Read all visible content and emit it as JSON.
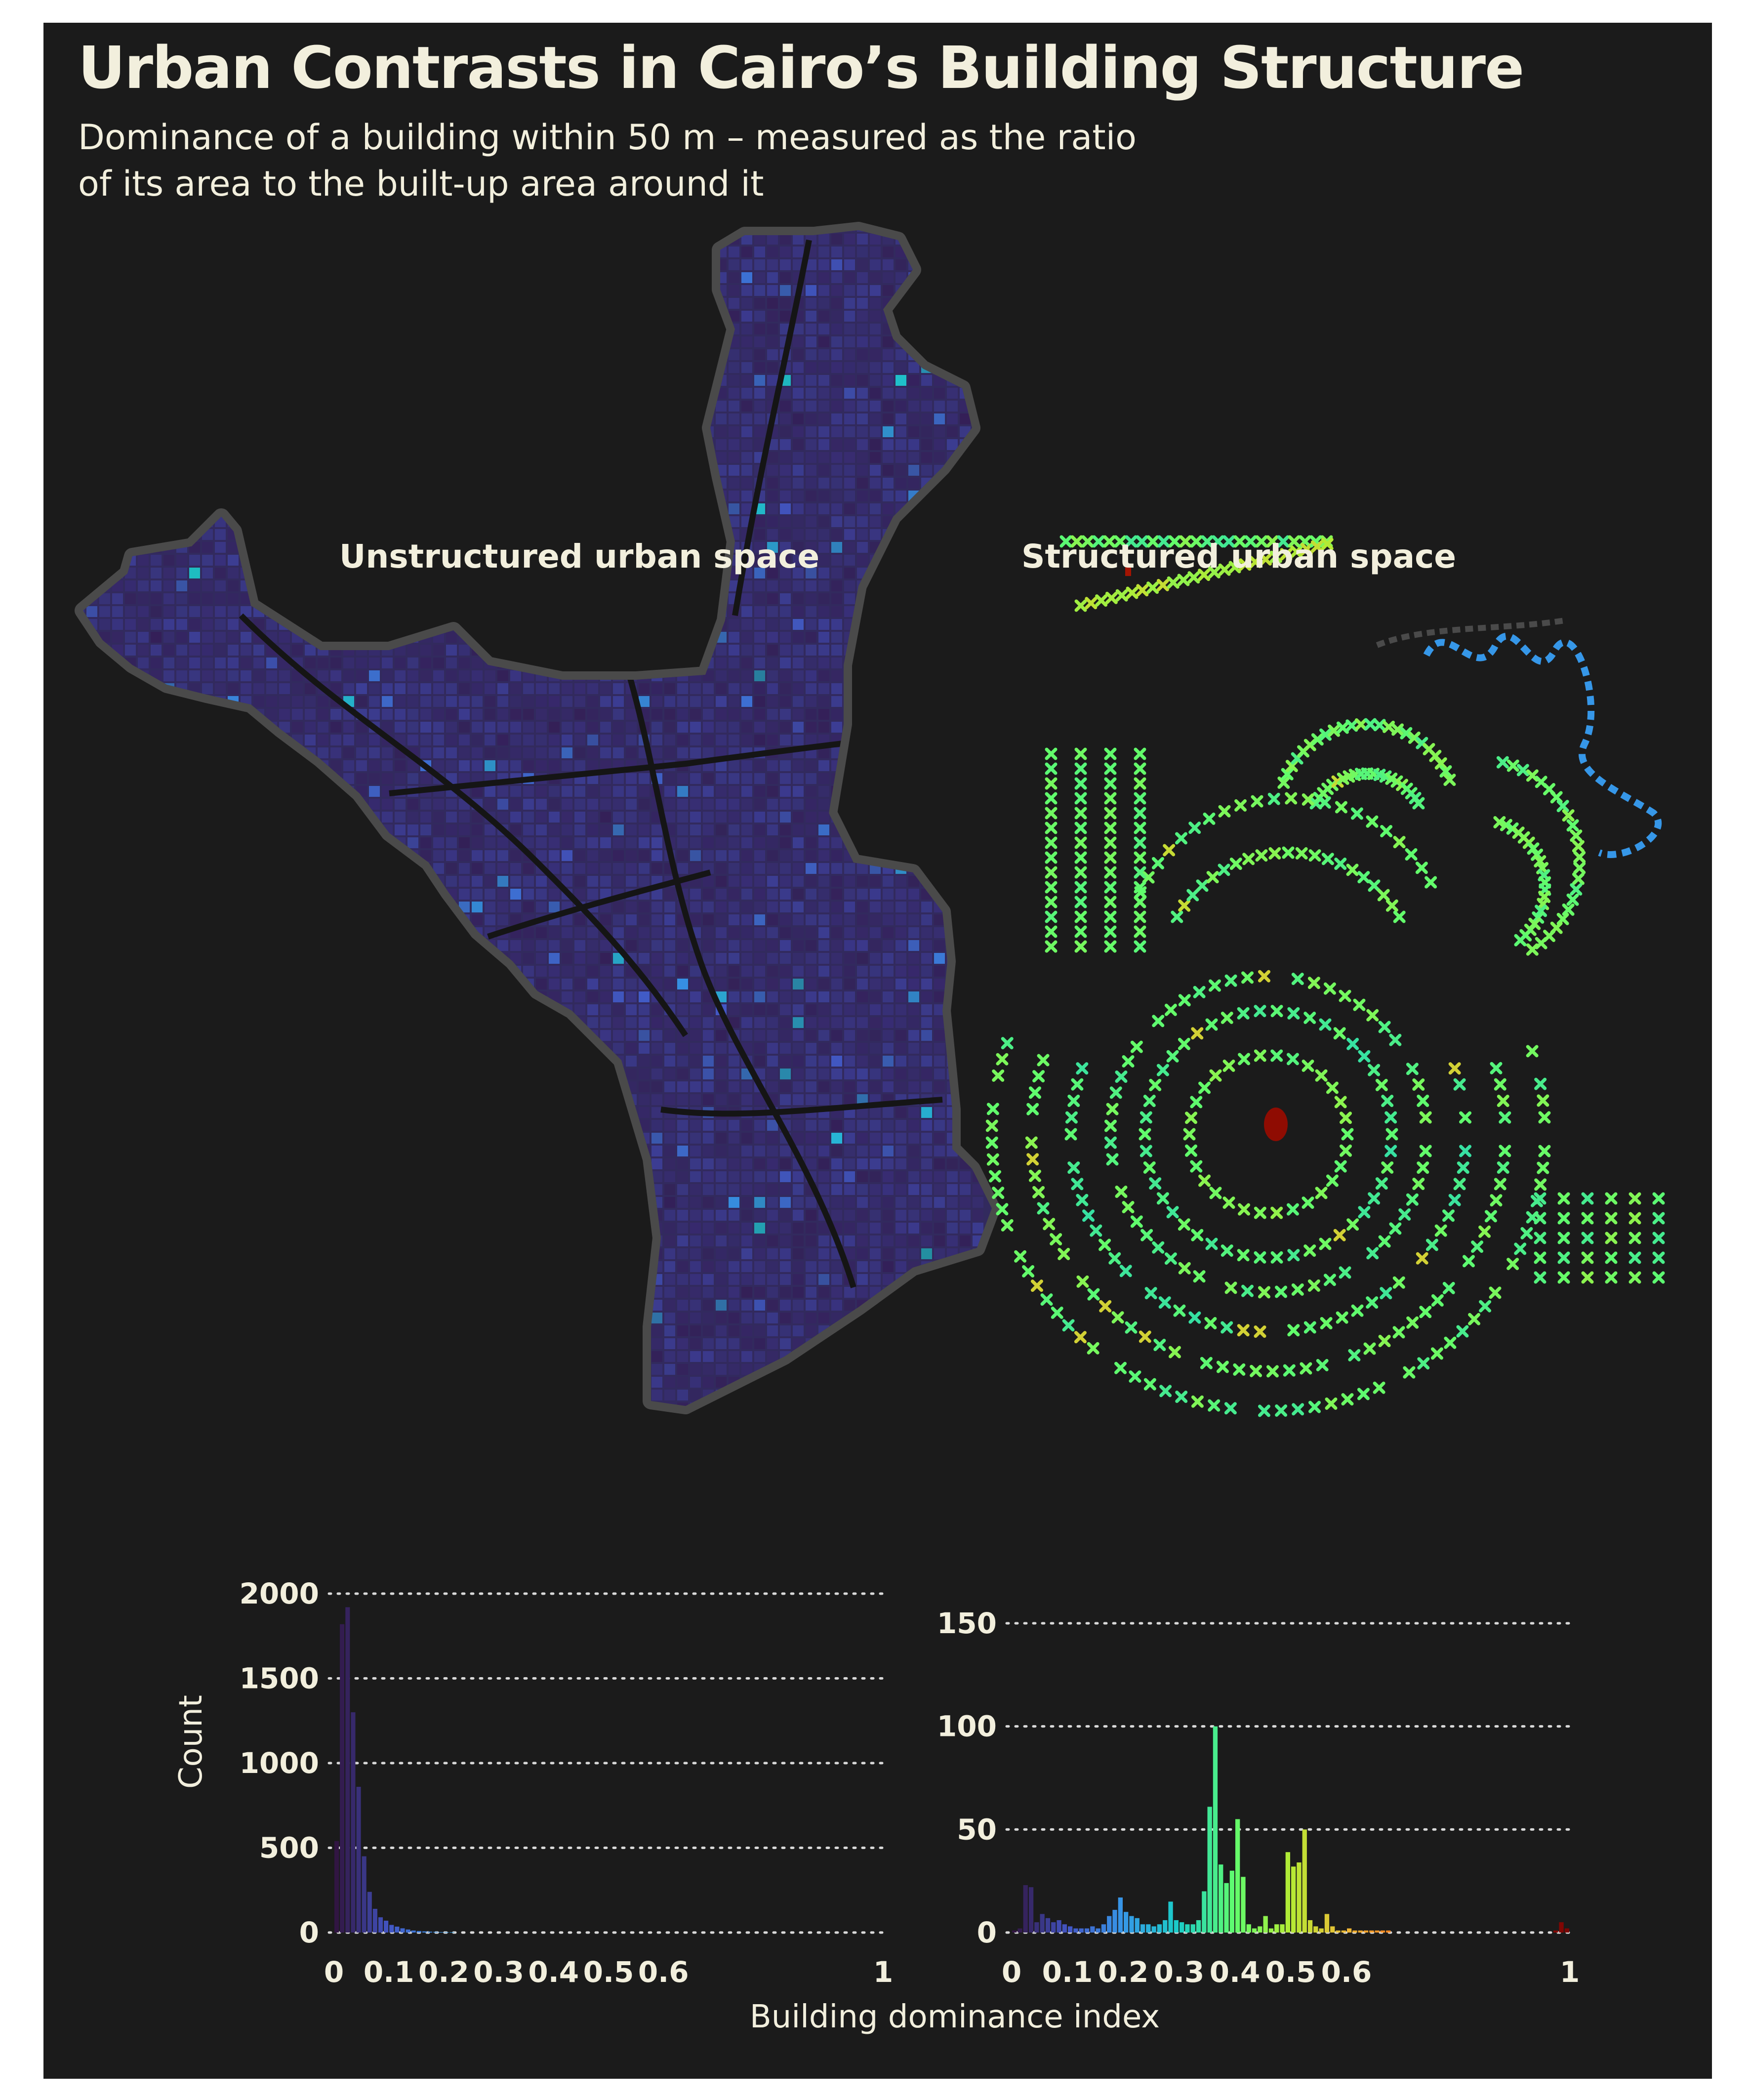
{
  "title": "Urban Contrasts in Cairo’s Building Structure",
  "subtitle": "Dominance of a building within 50 m – measured as the ratio of its area to the built-up area around it",
  "colors": {
    "background": "#1b1b1b",
    "text": "#f2efdd",
    "no_data_building": "#4a4a4a",
    "unstructured_base": "#322a5e"
  },
  "map": {
    "left_district": "unstructured urban space (organic street grid)",
    "right_district": "structured urban space (planned concentric blocks)"
  },
  "chart_data": [
    {
      "type": "bar",
      "title": "Unstructured urban space",
      "xlabel": "",
      "ylabel": "Count",
      "xlim": [
        0,
        1
      ],
      "ylim": [
        0,
        2000
      ],
      "yticks": [
        0,
        500,
        1000,
        1500,
        2000
      ],
      "yticklabels": [
        "0",
        "500",
        "1000",
        "1500",
        "2000"
      ],
      "xticks": [
        0,
        0.1,
        0.2,
        0.3,
        0.4,
        0.5,
        0.6,
        1
      ],
      "xticklabels": [
        "0",
        "0.1",
        "0.2",
        "0.3",
        "0.4",
        "0.5",
        "0.6",
        "1"
      ],
      "grid": "horizontal dotted",
      "bin_width": 0.01,
      "x": [
        0.005,
        0.015,
        0.025,
        0.035,
        0.045,
        0.055,
        0.065,
        0.075,
        0.085,
        0.095,
        0.105,
        0.115,
        0.125,
        0.135,
        0.145,
        0.155,
        0.165,
        0.175,
        0.185,
        0.195,
        0.205,
        0.215
      ],
      "values": [
        540,
        1820,
        1920,
        1300,
        860,
        450,
        240,
        140,
        90,
        70,
        45,
        35,
        25,
        18,
        12,
        9,
        7,
        5,
        4,
        3,
        2,
        2
      ]
    },
    {
      "type": "bar",
      "title": "Structured urban space",
      "xlabel": "Building dominance index",
      "ylabel": "",
      "xlim": [
        0,
        1
      ],
      "ylim": [
        0,
        150
      ],
      "yticks": [
        0,
        50,
        100,
        150
      ],
      "yticklabels": [
        "0",
        "50",
        "100",
        "150"
      ],
      "xticks": [
        0,
        0.1,
        0.2,
        0.3,
        0.4,
        0.5,
        0.6,
        1
      ],
      "xticklabels": [
        "0",
        "0.1",
        "0.2",
        "0.3",
        "0.4",
        "0.5",
        "0.6",
        "1"
      ],
      "grid": "horizontal dotted",
      "bin_width": 0.01,
      "x": [
        0.005,
        0.015,
        0.025,
        0.035,
        0.045,
        0.055,
        0.065,
        0.075,
        0.085,
        0.095,
        0.105,
        0.115,
        0.125,
        0.135,
        0.145,
        0.155,
        0.165,
        0.175,
        0.185,
        0.195,
        0.205,
        0.215,
        0.225,
        0.235,
        0.245,
        0.255,
        0.265,
        0.275,
        0.285,
        0.295,
        0.305,
        0.315,
        0.325,
        0.335,
        0.345,
        0.355,
        0.365,
        0.375,
        0.385,
        0.395,
        0.405,
        0.415,
        0.425,
        0.435,
        0.445,
        0.455,
        0.465,
        0.475,
        0.485,
        0.495,
        0.505,
        0.515,
        0.525,
        0.535,
        0.545,
        0.555,
        0.565,
        0.575,
        0.585,
        0.595,
        0.605,
        0.615,
        0.625,
        0.635,
        0.645,
        0.655,
        0.665,
        0.675,
        0.685,
        0.695,
        0.705,
        0.715,
        0.725,
        0.735,
        0.745,
        0.755,
        0.765,
        0.775,
        0.785,
        0.795,
        0.805,
        0.815,
        0.825,
        0.835,
        0.845,
        0.855,
        0.865,
        0.875,
        0.885,
        0.895,
        0.905,
        0.915,
        0.925,
        0.935,
        0.945,
        0.955,
        0.965,
        0.975,
        0.985,
        0.995
      ],
      "values": [
        1,
        2,
        23,
        22,
        5,
        9,
        7,
        5,
        6,
        4,
        3,
        2,
        2,
        2,
        3,
        2,
        4,
        8,
        11,
        17,
        10,
        8,
        7,
        4,
        4,
        3,
        4,
        6,
        15,
        6,
        5,
        4,
        4,
        6,
        20,
        61,
        100,
        33,
        24,
        30,
        55,
        27,
        4,
        2,
        3,
        8,
        2,
        4,
        4,
        39,
        32,
        34,
        50,
        6,
        3,
        2,
        9,
        3,
        1,
        1,
        2,
        1,
        1,
        1,
        1,
        1,
        1,
        1,
        0,
        0,
        0,
        0,
        0,
        0,
        0,
        0,
        0,
        0,
        0,
        0,
        0,
        0,
        0,
        0,
        0,
        0,
        0,
        0,
        0,
        0,
        0,
        0,
        0,
        0,
        0,
        0,
        0,
        1,
        5,
        2
      ]
    }
  ]
}
